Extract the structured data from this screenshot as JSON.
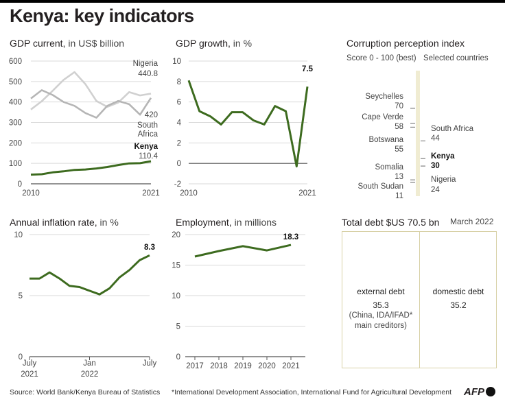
{
  "header": {
    "title": "Kenya: key indicators"
  },
  "panels": {
    "gdp": {
      "title": "GDP current,",
      "unit": "in US$ billion"
    },
    "growth": {
      "title": "GDP growth,",
      "unit": "in %"
    },
    "cpi": {
      "title": "Corruption perception index",
      "scale": "Score 0 - 100 (best)",
      "note": "Selected countries"
    },
    "inflation": {
      "title": "Annual inflation rate,",
      "unit": "in %"
    },
    "employment": {
      "title": "Employment,",
      "unit": "in millions"
    },
    "debt": {
      "title": "Total debt $US 70.5 bn",
      "date": "March 2022"
    }
  },
  "debt": {
    "external_label": "external debt",
    "external_value": "35.3",
    "external_note_1": "(China, IDA/IFAD*",
    "external_note_2": "main creditors)",
    "domestic_label": "domestic debt",
    "domestic_value": "35.2"
  },
  "footer": {
    "source": "Source: World Bank/Kenya Bureau of Statistics",
    "footnote": "*International Development Association, International Fund for Agricultural Development",
    "logo": "AFP"
  },
  "colors": {
    "green": "#3d6b1f",
    "gray": "#cfcfcf",
    "darkgray": "#b9b9b9",
    "axis": "#555555",
    "grid": "#d9d9d9",
    "bar": "#f0ecd2"
  },
  "chart_data": [
    {
      "type": "line",
      "title": "GDP current, in US$ billion",
      "x": [
        2010,
        2011,
        2012,
        2013,
        2014,
        2015,
        2016,
        2017,
        2018,
        2019,
        2020,
        2021
      ],
      "xticks": [
        "2010",
        "2021"
      ],
      "yticks": [
        "0",
        "100",
        "200",
        "300",
        "400",
        "500",
        "600"
      ],
      "ylim": [
        0,
        600
      ],
      "series": [
        {
          "name": "Kenya",
          "value_label": "110.4",
          "values": [
            45,
            47,
            56,
            61,
            68,
            70,
            75,
            82,
            92,
            100,
            101,
            110.4
          ]
        },
        {
          "name": "Nigeria",
          "value_label": "440.8",
          "values": [
            363,
            404,
            455,
            508,
            546,
            487,
            405,
            376,
            397,
            448,
            432,
            440.8
          ]
        },
        {
          "name": "South Africa",
          "value_label": "420",
          "values": [
            417,
            458,
            434,
            400,
            381,
            346,
            323,
            381,
            405,
            389,
            338,
            420
          ]
        }
      ],
      "labels": {
        "nigeria": "Nigeria",
        "nigeria_value": "440.8",
        "sa_value": "420",
        "sa_1": "South",
        "sa_2": "Africa",
        "kenya": "Kenya",
        "kenya_value": "110.4"
      }
    },
    {
      "type": "line",
      "title": "GDP growth, in %",
      "x": [
        2010,
        2011,
        2012,
        2013,
        2014,
        2015,
        2016,
        2017,
        2018,
        2019,
        2020,
        2021
      ],
      "xticks": [
        "2010",
        "2021"
      ],
      "yticks": [
        "-2",
        "0",
        "2",
        "4",
        "6",
        "8",
        "10"
      ],
      "ylim": [
        -2,
        10
      ],
      "series": [
        {
          "values": [
            8.1,
            5.1,
            4.6,
            3.8,
            5.0,
            5.0,
            4.2,
            3.8,
            5.6,
            5.1,
            -0.3,
            7.5
          ]
        }
      ],
      "end_label": "7.5"
    },
    {
      "type": "scatter",
      "title": "Corruption perception index",
      "ylim": [
        0,
        100
      ],
      "points": [
        {
          "country": "Seychelles",
          "score": 70,
          "side": "left"
        },
        {
          "country": "Cape Verde",
          "score": 58,
          "side": "left"
        },
        {
          "country": "Botswana",
          "score": 55,
          "side": "left"
        },
        {
          "country": "South Africa",
          "score": 44,
          "side": "right"
        },
        {
          "country": "Kenya",
          "score": 30,
          "side": "right",
          "highlight": true
        },
        {
          "country": "Nigeria",
          "score": 24,
          "side": "right"
        },
        {
          "country": "Somalia",
          "score": 13,
          "side": "left"
        },
        {
          "country": "South Sudan",
          "score": 11,
          "side": "left"
        }
      ]
    },
    {
      "type": "line",
      "title": "Annual inflation rate, in %",
      "x": [
        "Jul 2021",
        "Aug",
        "Sep",
        "Oct",
        "Nov",
        "Dec",
        "Jan 2022",
        "Feb",
        "Mar",
        "Apr",
        "May",
        "Jun",
        "Jul"
      ],
      "xticks": [
        [
          "July",
          "2021"
        ],
        [
          "Jan",
          "2022"
        ],
        [
          "July",
          ""
        ]
      ],
      "yticks": [
        "0",
        "5",
        "10"
      ],
      "ylim": [
        0,
        10
      ],
      "series": [
        {
          "values": [
            6.4,
            6.4,
            6.9,
            6.4,
            5.8,
            5.7,
            5.4,
            5.1,
            5.6,
            6.5,
            7.1,
            7.9,
            8.3
          ]
        }
      ],
      "end_label": "8.3"
    },
    {
      "type": "line",
      "title": "Employment, in millions",
      "x": [
        2017,
        2018,
        2019,
        2020,
        2021
      ],
      "xticks": [
        "2017",
        "2018",
        "2019",
        "2020",
        "2021"
      ],
      "yticks": [
        "0",
        "5",
        "10",
        "15",
        "20"
      ],
      "ylim": [
        0,
        20
      ],
      "series": [
        {
          "values": [
            16.4,
            17.3,
            18.1,
            17.4,
            18.3
          ]
        }
      ],
      "end_label": "18.3"
    }
  ]
}
